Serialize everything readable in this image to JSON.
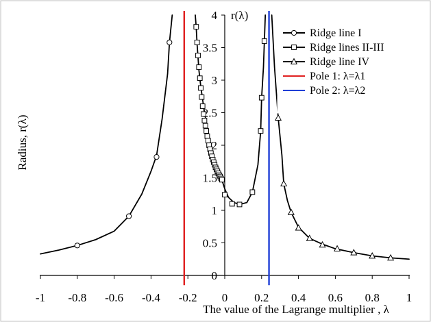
{
  "chart_data": {
    "type": "line",
    "title": "",
    "xlabel": "The value of the Lagrange multiplier , λ",
    "ylabel": "Radius, r(λ)",
    "ylabel_inline": "r(λ)",
    "xlim": [
      -1,
      1
    ],
    "ylim": [
      0,
      4
    ],
    "x_ticks": [
      -1,
      -0.8,
      -0.6,
      -0.4,
      -0.2,
      0,
      0.2,
      0.4,
      0.6,
      0.8,
      1
    ],
    "x_tick_labels": [
      "-1",
      "-0.8",
      "-0.6",
      "-0.4",
      "-0.2",
      "0",
      "0.2",
      "0.4",
      "0.6",
      "0.8",
      "1"
    ],
    "y_ticks": [
      0,
      0.5,
      1,
      1.5,
      2,
      2.5,
      3,
      3.5,
      4
    ],
    "y_tick_labels": [
      "0",
      "0.5",
      "1",
      "1.5",
      "2",
      "2.5",
      "3",
      "3.5",
      "4"
    ],
    "grid": false,
    "legend_position": "top-right",
    "series": [
      {
        "name": "Ridge line I",
        "marker": "circle",
        "color": "#000000",
        "curve": [
          [
            -1.0,
            0.33
          ],
          [
            -0.9,
            0.39
          ],
          [
            -0.8,
            0.46
          ],
          [
            -0.7,
            0.55
          ],
          [
            -0.6,
            0.68
          ],
          [
            -0.52,
            0.91
          ],
          [
            -0.45,
            1.25
          ],
          [
            -0.4,
            1.6
          ],
          [
            -0.37,
            1.84
          ],
          [
            -0.34,
            2.4
          ],
          [
            -0.31,
            3.1
          ],
          [
            -0.3,
            3.58
          ],
          [
            -0.285,
            4.0
          ]
        ],
        "markers": [
          [
            -0.8,
            0.46
          ],
          [
            -0.52,
            0.91
          ],
          [
            -0.37,
            1.82
          ],
          [
            -0.3,
            3.58
          ]
        ]
      },
      {
        "name": "Ridge lines II-III",
        "marker": "square",
        "color": "#000000",
        "curve": [
          [
            -0.16,
            4.0
          ],
          [
            -0.155,
            3.82
          ],
          [
            -0.15,
            3.55
          ],
          [
            -0.145,
            3.35
          ],
          [
            -0.14,
            3.15
          ],
          [
            -0.13,
            2.9
          ],
          [
            -0.12,
            2.7
          ],
          [
            -0.11,
            2.5
          ],
          [
            -0.1,
            2.35
          ],
          [
            -0.09,
            2.2
          ],
          [
            -0.08,
            2.05
          ],
          [
            -0.07,
            1.92
          ],
          [
            -0.06,
            1.8
          ],
          [
            -0.05,
            1.7
          ],
          [
            -0.04,
            1.62
          ],
          [
            -0.03,
            1.55
          ],
          [
            -0.02,
            1.48
          ],
          [
            -0.01,
            1.42
          ],
          [
            0.0,
            1.33
          ],
          [
            0.02,
            1.2
          ],
          [
            0.05,
            1.12
          ],
          [
            0.08,
            1.09
          ],
          [
            0.12,
            1.12
          ],
          [
            0.15,
            1.28
          ],
          [
            0.18,
            1.7
          ],
          [
            0.195,
            2.22
          ],
          [
            0.2,
            2.73
          ],
          [
            0.21,
            3.2
          ],
          [
            0.215,
            3.6
          ],
          [
            0.22,
            4.0
          ]
        ],
        "markers": [
          [
            -0.155,
            3.82
          ],
          [
            -0.15,
            3.58
          ],
          [
            -0.145,
            3.38
          ],
          [
            -0.14,
            3.2
          ],
          [
            -0.135,
            3.03
          ],
          [
            -0.13,
            2.88
          ],
          [
            -0.125,
            2.74
          ],
          [
            -0.12,
            2.6
          ],
          [
            -0.115,
            2.48
          ],
          [
            -0.11,
            2.38
          ],
          [
            -0.105,
            2.3
          ],
          [
            -0.1,
            2.22
          ],
          [
            -0.095,
            2.14
          ],
          [
            -0.09,
            2.07
          ],
          [
            -0.085,
            2.0
          ],
          [
            -0.08,
            1.94
          ],
          [
            -0.075,
            1.88
          ],
          [
            -0.07,
            1.83
          ],
          [
            -0.065,
            1.78
          ],
          [
            -0.06,
            1.74
          ],
          [
            -0.055,
            1.7
          ],
          [
            -0.05,
            1.66
          ],
          [
            -0.045,
            1.63
          ],
          [
            -0.04,
            1.6
          ],
          [
            -0.035,
            1.57
          ],
          [
            -0.03,
            1.54
          ],
          [
            -0.025,
            1.52
          ],
          [
            -0.02,
            1.49
          ],
          [
            -0.015,
            1.47
          ],
          [
            0.0,
            1.24
          ],
          [
            0.04,
            1.1
          ],
          [
            0.08,
            1.09
          ],
          [
            0.15,
            1.28
          ],
          [
            0.195,
            2.22
          ],
          [
            0.2,
            2.73
          ],
          [
            0.215,
            3.6
          ]
        ]
      },
      {
        "name": "Ridge line IV",
        "marker": "triangle",
        "color": "#000000",
        "curve": [
          [
            0.255,
            4.0
          ],
          [
            0.27,
            3.2
          ],
          [
            0.29,
            2.42
          ],
          [
            0.31,
            1.85
          ],
          [
            0.32,
            1.41
          ],
          [
            0.34,
            1.15
          ],
          [
            0.36,
            0.97
          ],
          [
            0.4,
            0.74
          ],
          [
            0.46,
            0.57
          ],
          [
            0.53,
            0.48
          ],
          [
            0.6,
            0.41
          ],
          [
            0.7,
            0.35
          ],
          [
            0.8,
            0.3
          ],
          [
            0.9,
            0.27
          ],
          [
            1.0,
            0.25
          ]
        ],
        "markers": [
          [
            0.29,
            2.42
          ],
          [
            0.32,
            1.41
          ],
          [
            0.36,
            0.97
          ],
          [
            0.4,
            0.73
          ],
          [
            0.46,
            0.57
          ],
          [
            0.53,
            0.47
          ],
          [
            0.61,
            0.41
          ],
          [
            0.7,
            0.35
          ],
          [
            0.8,
            0.3
          ],
          [
            0.9,
            0.27
          ]
        ]
      }
    ],
    "vertical_lines": [
      {
        "name": "Pole 1: λ=λ1",
        "x": -0.22,
        "color": "#e02020"
      },
      {
        "name": "Pole 2: λ=λ2",
        "x": 0.24,
        "color": "#1f3fd6"
      }
    ]
  }
}
